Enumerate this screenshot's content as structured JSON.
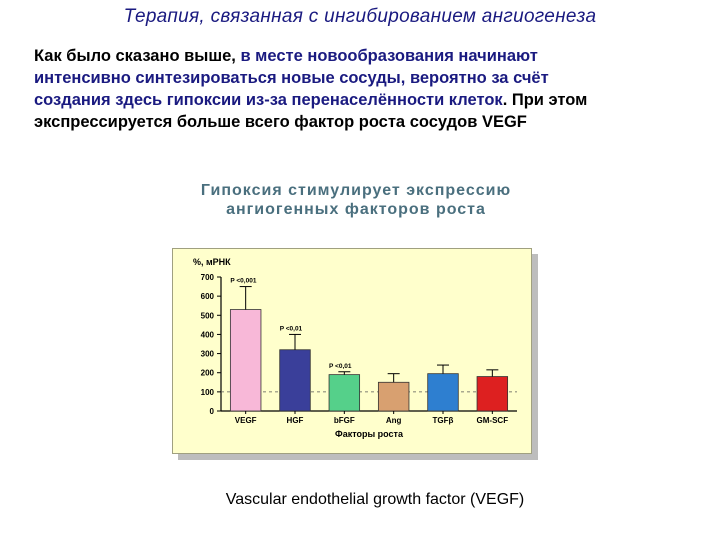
{
  "slide": {
    "title": "Терапия, связанная с ингибированием ангиогенеза",
    "paragraph": {
      "line1_black": "Как было сказано выше, ",
      "line1_blue": "в месте новообразования начинают",
      "line2": "интенсивно синтезироваться новые сосуды, вероятно за счёт",
      "line3_blue": "создания здесь гипоксии из-за перенаселённости клеток",
      "line3_black": ". При этом",
      "line4": "экспрессируется  больше всего фактор роста сосудов VEGF"
    },
    "chart_caption_line1": "Гипоксия  стимулирует  экспрессию",
    "chart_caption_line2": "ангиогенных факторов  роста",
    "figure_caption": "Vascular endothelial growth factor (VEGF)"
  },
  "chart_data": {
    "type": "bar",
    "ylabel": "%, мРНК",
    "xlabel": "Факторы роста",
    "ylim": [
      0,
      700
    ],
    "yticks": [
      "0",
      "100",
      "200",
      "300",
      "400",
      "500",
      "600",
      "700"
    ],
    "categories": [
      "VEGF",
      "HGF",
      "bFGF",
      "Ang",
      "TGFβ",
      "GM-SCF"
    ],
    "values": [
      530,
      320,
      190,
      150,
      195,
      180
    ],
    "errors": [
      120,
      80,
      15,
      45,
      45,
      35
    ],
    "annotations": [
      "P <0,001",
      "P <0,01",
      "P <0,01",
      "",
      "",
      ""
    ],
    "reference_line": 100,
    "colors": [
      "#f8b8d8",
      "#3a3f9a",
      "#55d08a",
      "#d8a070",
      "#2e7fd0",
      "#dd2020"
    ]
  }
}
